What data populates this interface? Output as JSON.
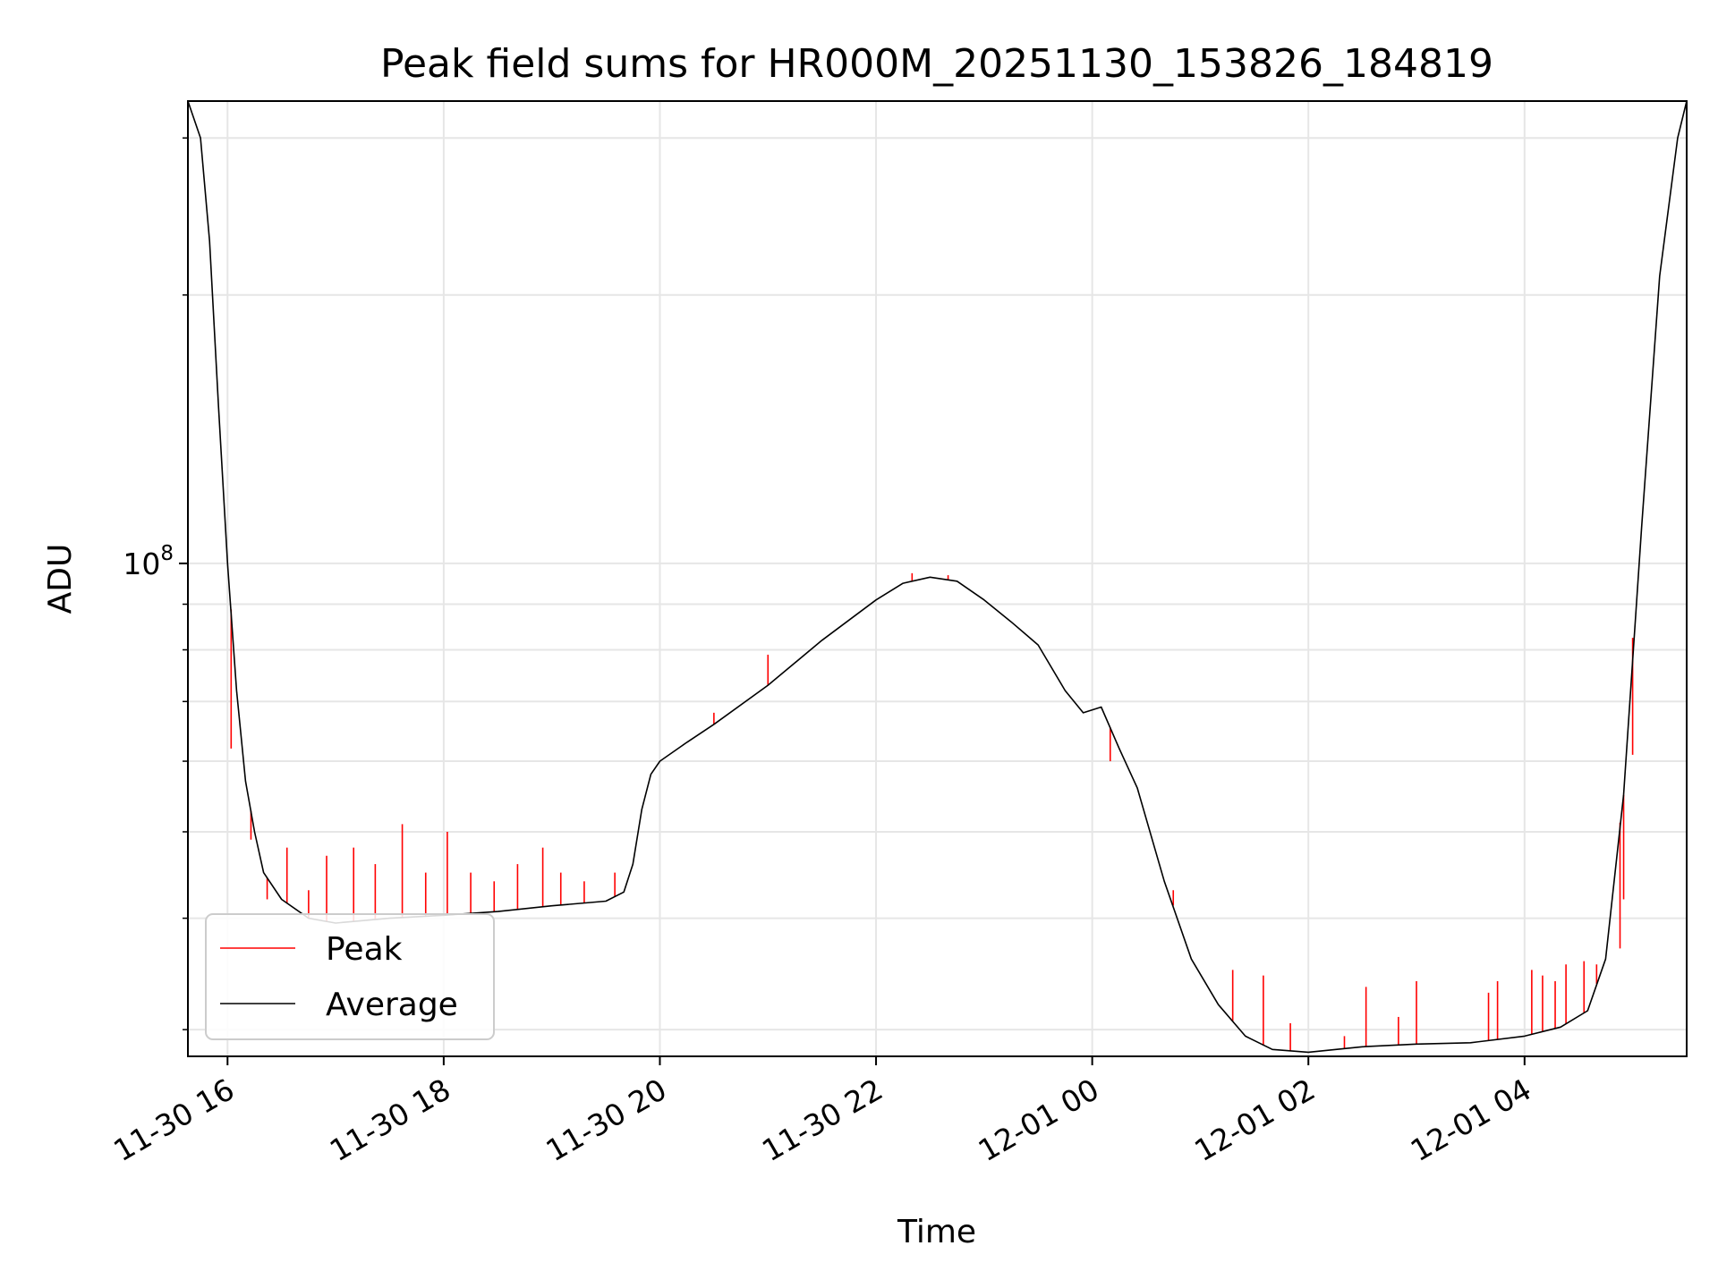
{
  "chart_data": {
    "type": "line",
    "title": "Peak field sums for HR000M_20251130_153826_184819",
    "xlabel": "Time",
    "ylabel": "ADU",
    "y_scale": "log",
    "y_tick_labels": [
      {
        "value": 100000000,
        "base": "10",
        "exp": "8"
      }
    ],
    "ylim": [
      28000000,
      330000000
    ],
    "xlim": [
      "2025-11-30 15:38",
      "2025-12-01 05:30"
    ],
    "x_tick_labels": [
      {
        "t": "2025-11-30 16:00",
        "label": "11-30 16"
      },
      {
        "t": "2025-11-30 18:00",
        "label": "11-30 18"
      },
      {
        "t": "2025-11-30 20:00",
        "label": "11-30 20"
      },
      {
        "t": "2025-11-30 22:00",
        "label": "11-30 22"
      },
      {
        "t": "2025-12-01 00:00",
        "label": "12-01 00"
      },
      {
        "t": "2025-12-01 02:00",
        "label": "12-01 02"
      },
      {
        "t": "2025-12-01 04:00",
        "label": "12-01 04"
      }
    ],
    "grid": true,
    "legend_position": "lower-left",
    "series": [
      {
        "name": "Average",
        "color": "#000000",
        "points": [
          [
            "2025-11-30 15:38",
            330000000
          ],
          [
            "2025-11-30 15:45",
            300000000
          ],
          [
            "2025-11-30 15:50",
            230000000
          ],
          [
            "2025-11-30 15:55",
            150000000
          ],
          [
            "2025-11-30 16:00",
            100000000
          ],
          [
            "2025-11-30 16:05",
            72000000
          ],
          [
            "2025-11-30 16:10",
            57000000
          ],
          [
            "2025-11-30 16:15",
            50000000
          ],
          [
            "2025-11-30 16:20",
            45000000
          ],
          [
            "2025-11-30 16:30",
            42000000
          ],
          [
            "2025-11-30 16:45",
            40000000
          ],
          [
            "2025-11-30 17:00",
            39500000
          ],
          [
            "2025-11-30 17:30",
            40000000
          ],
          [
            "2025-11-30 18:00",
            40300000
          ],
          [
            "2025-11-30 18:30",
            40700000
          ],
          [
            "2025-11-30 19:00",
            41300000
          ],
          [
            "2025-11-30 19:30",
            41800000
          ],
          [
            "2025-11-30 19:40",
            42800000
          ],
          [
            "2025-11-30 19:45",
            46000000
          ],
          [
            "2025-11-30 19:50",
            53000000
          ],
          [
            "2025-11-30 19:55",
            58000000
          ],
          [
            "2025-11-30 20:00",
            60000000
          ],
          [
            "2025-11-30 20:15",
            63000000
          ],
          [
            "2025-11-30 20:30",
            66000000
          ],
          [
            "2025-11-30 21:00",
            73000000
          ],
          [
            "2025-11-30 21:30",
            82000000
          ],
          [
            "2025-11-30 22:00",
            91000000
          ],
          [
            "2025-11-30 22:15",
            95000000
          ],
          [
            "2025-11-30 22:30",
            96500000
          ],
          [
            "2025-11-30 22:45",
            95500000
          ],
          [
            "2025-11-30 23:00",
            91000000
          ],
          [
            "2025-11-30 23:15",
            86000000
          ],
          [
            "2025-11-30 23:30",
            81000000
          ],
          [
            "2025-11-30 23:45",
            72000000
          ],
          [
            "2025-11-30 23:55",
            68000000
          ],
          [
            "2025-12-01 00:05",
            69000000
          ],
          [
            "2025-12-01 00:15",
            62000000
          ],
          [
            "2025-12-01 00:25",
            56000000
          ],
          [
            "2025-12-01 00:40",
            44000000
          ],
          [
            "2025-12-01 00:55",
            36000000
          ],
          [
            "2025-12-01 01:10",
            32000000
          ],
          [
            "2025-12-01 01:25",
            29500000
          ],
          [
            "2025-12-01 01:40",
            28500000
          ],
          [
            "2025-12-01 02:00",
            28300000
          ],
          [
            "2025-12-01 02:30",
            28700000
          ],
          [
            "2025-12-01 03:00",
            28900000
          ],
          [
            "2025-12-01 03:30",
            29000000
          ],
          [
            "2025-12-01 04:00",
            29500000
          ],
          [
            "2025-12-01 04:20",
            30200000
          ],
          [
            "2025-12-01 04:35",
            31500000
          ],
          [
            "2025-12-01 04:45",
            36000000
          ],
          [
            "2025-12-01 04:55",
            55000000
          ],
          [
            "2025-12-01 05:05",
            110000000
          ],
          [
            "2025-12-01 05:15",
            210000000
          ],
          [
            "2025-12-01 05:25",
            300000000
          ],
          [
            "2025-12-01 05:30",
            330000000
          ]
        ]
      },
      {
        "name": "Peak",
        "color": "#ff0000",
        "points": [
          [
            "2025-11-30 16:02",
            62000000
          ],
          [
            "2025-11-30 16:13",
            49000000
          ],
          [
            "2025-11-30 16:22",
            42000000
          ],
          [
            "2025-11-30 16:33",
            48000000
          ],
          [
            "2025-11-30 16:45",
            43000000
          ],
          [
            "2025-11-30 16:55",
            47000000
          ],
          [
            "2025-11-30 17:10",
            48000000
          ],
          [
            "2025-11-30 17:22",
            46000000
          ],
          [
            "2025-11-30 17:37",
            51000000
          ],
          [
            "2025-11-30 17:50",
            45000000
          ],
          [
            "2025-11-30 18:02",
            50000000
          ],
          [
            "2025-11-30 18:15",
            45000000
          ],
          [
            "2025-11-30 18:28",
            44000000
          ],
          [
            "2025-11-30 18:41",
            46000000
          ],
          [
            "2025-11-30 18:55",
            48000000
          ],
          [
            "2025-11-30 19:05",
            45000000
          ],
          [
            "2025-11-30 19:18",
            44000000
          ],
          [
            "2025-11-30 19:35",
            45000000
          ],
          [
            "2025-11-30 20:30",
            68000000
          ],
          [
            "2025-11-30 21:00",
            79000000
          ],
          [
            "2025-11-30 22:20",
            97500000
          ],
          [
            "2025-11-30 22:40",
            97000000
          ],
          [
            "2025-12-01 00:10",
            60000000
          ],
          [
            "2025-12-01 00:45",
            43000000
          ],
          [
            "2025-12-01 01:18",
            35000000
          ],
          [
            "2025-12-01 01:35",
            34500000
          ],
          [
            "2025-12-01 01:50",
            30500000
          ],
          [
            "2025-12-01 02:20",
            29500000
          ],
          [
            "2025-12-01 02:32",
            33500000
          ],
          [
            "2025-12-01 02:50",
            31000000
          ],
          [
            "2025-12-01 03:00",
            34000000
          ],
          [
            "2025-12-01 03:40",
            33000000
          ],
          [
            "2025-12-01 03:45",
            34000000
          ],
          [
            "2025-12-01 04:04",
            35000000
          ],
          [
            "2025-12-01 04:10",
            34500000
          ],
          [
            "2025-12-01 04:17",
            34000000
          ],
          [
            "2025-12-01 04:23",
            35500000
          ],
          [
            "2025-12-01 04:33",
            35800000
          ],
          [
            "2025-12-01 04:40",
            35500000
          ],
          [
            "2025-12-01 04:53",
            37000000
          ],
          [
            "2025-12-01 04:55",
            42000000
          ],
          [
            "2025-12-01 05:00",
            61000000
          ]
        ]
      }
    ]
  }
}
